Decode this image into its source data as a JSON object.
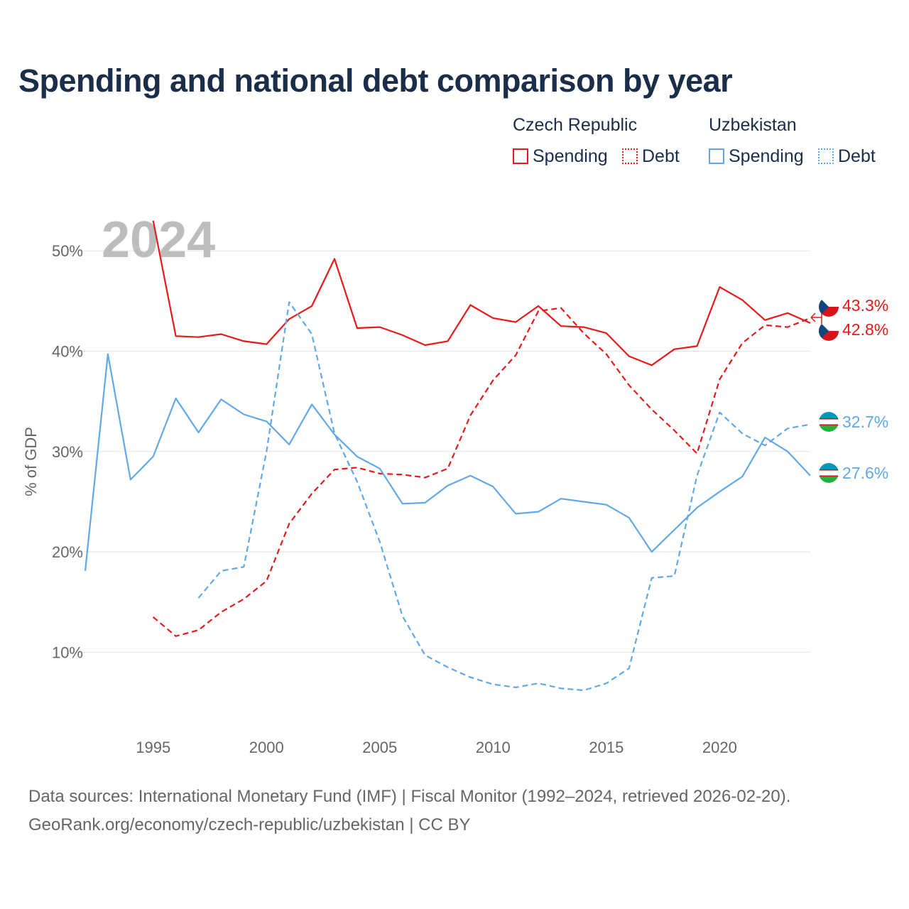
{
  "title": "Spending and national debt comparison by year",
  "legend": {
    "groups": [
      {
        "name": "Czech Republic",
        "color": "#e8191b",
        "items": [
          {
            "label": "Spending",
            "style": "solid"
          },
          {
            "label": "Debt",
            "style": "dotted"
          }
        ]
      },
      {
        "name": "Uzbekistan",
        "color": "#62a8e5",
        "items": [
          {
            "label": "Spending",
            "style": "solid"
          },
          {
            "label": "Debt",
            "style": "dotted"
          }
        ]
      }
    ]
  },
  "footer": {
    "source": "Data sources: International Monetary Fund (IMF) | Fiscal Monitor (1992–2024, retrieved 2026-02-20).",
    "credit": "GeoRank.org/economy/czech-republic/uzbekistan | CC BY"
  },
  "chart_data": {
    "type": "line",
    "title": "Spending and national debt comparison by year",
    "year_label": "2024",
    "xlabel": "",
    "ylabel": "% of GDP",
    "xlim": [
      1992,
      2024
    ],
    "ylim": [
      0,
      55
    ],
    "x_ticks": [
      "1995",
      "2000",
      "2005",
      "2010",
      "2015",
      "2020"
    ],
    "y_ticks": [
      "10%",
      "20%",
      "30%",
      "40%",
      "50%"
    ],
    "grid": true,
    "series": [
      {
        "name": "Czech Republic Spending",
        "country": "Czech Republic",
        "color": "#e8191b",
        "dashed": false,
        "x": [
          1995,
          1996,
          1997,
          1998,
          1999,
          2000,
          2001,
          2002,
          2003,
          2004,
          2005,
          2006,
          2007,
          2008,
          2009,
          2010,
          2011,
          2012,
          2013,
          2014,
          2015,
          2016,
          2017,
          2018,
          2019,
          2020,
          2021,
          2022,
          2023,
          2024
        ],
        "values": [
          53.0,
          41.5,
          41.4,
          41.7,
          41.0,
          40.7,
          43.2,
          44.5,
          49.2,
          42.3,
          42.4,
          41.6,
          40.6,
          41.0,
          44.6,
          43.3,
          42.9,
          44.5,
          42.5,
          42.4,
          41.8,
          39.5,
          38.6,
          40.2,
          40.5,
          46.4,
          45.1,
          43.1,
          43.8,
          42.8
        ],
        "end_label": "42.8%"
      },
      {
        "name": "Czech Republic Debt",
        "country": "Czech Republic",
        "color": "#e8191b",
        "dashed": true,
        "x": [
          1995,
          1996,
          1997,
          1998,
          1999,
          2000,
          2001,
          2002,
          2003,
          2004,
          2005,
          2006,
          2007,
          2008,
          2009,
          2010,
          2011,
          2012,
          2013,
          2014,
          2015,
          2016,
          2017,
          2018,
          2019,
          2020,
          2021,
          2022,
          2023,
          2024
        ],
        "values": [
          13.5,
          11.6,
          12.2,
          14.0,
          15.3,
          17.1,
          22.8,
          25.8,
          28.2,
          28.4,
          27.8,
          27.7,
          27.4,
          28.3,
          33.6,
          37.1,
          39.6,
          44.0,
          44.3,
          41.8,
          39.7,
          36.6,
          34.2,
          32.1,
          29.8,
          37.2,
          40.8,
          42.6,
          42.4,
          43.3
        ],
        "end_label": "43.3%"
      },
      {
        "name": "Uzbekistan Spending",
        "country": "Uzbekistan",
        "color": "#62a8e5",
        "dashed": false,
        "x": [
          1992,
          1993,
          1994,
          1995,
          1996,
          1997,
          1998,
          1999,
          2000,
          2001,
          2002,
          2003,
          2004,
          2005,
          2006,
          2007,
          2008,
          2009,
          2010,
          2011,
          2012,
          2013,
          2014,
          2015,
          2016,
          2017,
          2018,
          2019,
          2020,
          2021,
          2022,
          2023,
          2024
        ],
        "values": [
          18.1,
          39.7,
          27.2,
          29.5,
          35.3,
          31.9,
          35.2,
          33.7,
          33.0,
          30.7,
          34.7,
          31.7,
          29.5,
          28.3,
          24.8,
          24.9,
          26.6,
          27.6,
          26.5,
          23.8,
          24.0,
          25.3,
          25.0,
          24.7,
          23.4,
          20.0,
          22.2,
          24.4,
          26.0,
          27.5,
          31.4,
          30.0,
          27.6
        ],
        "end_label": "27.6%"
      },
      {
        "name": "Uzbekistan Debt",
        "country": "Uzbekistan",
        "color": "#62a8e5",
        "dashed": true,
        "x": [
          1997,
          1998,
          1999,
          2000,
          2001,
          2002,
          2003,
          2004,
          2005,
          2006,
          2007,
          2008,
          2009,
          2010,
          2011,
          2012,
          2013,
          2014,
          2015,
          2016,
          2017,
          2018,
          2019,
          2020,
          2021,
          2022,
          2023,
          2024
        ],
        "values": [
          15.4,
          18.1,
          18.5,
          30.0,
          44.9,
          41.7,
          31.8,
          27.0,
          21.0,
          13.6,
          9.7,
          8.5,
          7.5,
          6.8,
          6.5,
          6.9,
          6.4,
          6.2,
          6.9,
          8.4,
          17.4,
          17.6,
          27.6,
          33.9,
          31.8,
          30.6,
          32.3,
          32.7
        ],
        "end_label": "32.7%"
      }
    ]
  }
}
